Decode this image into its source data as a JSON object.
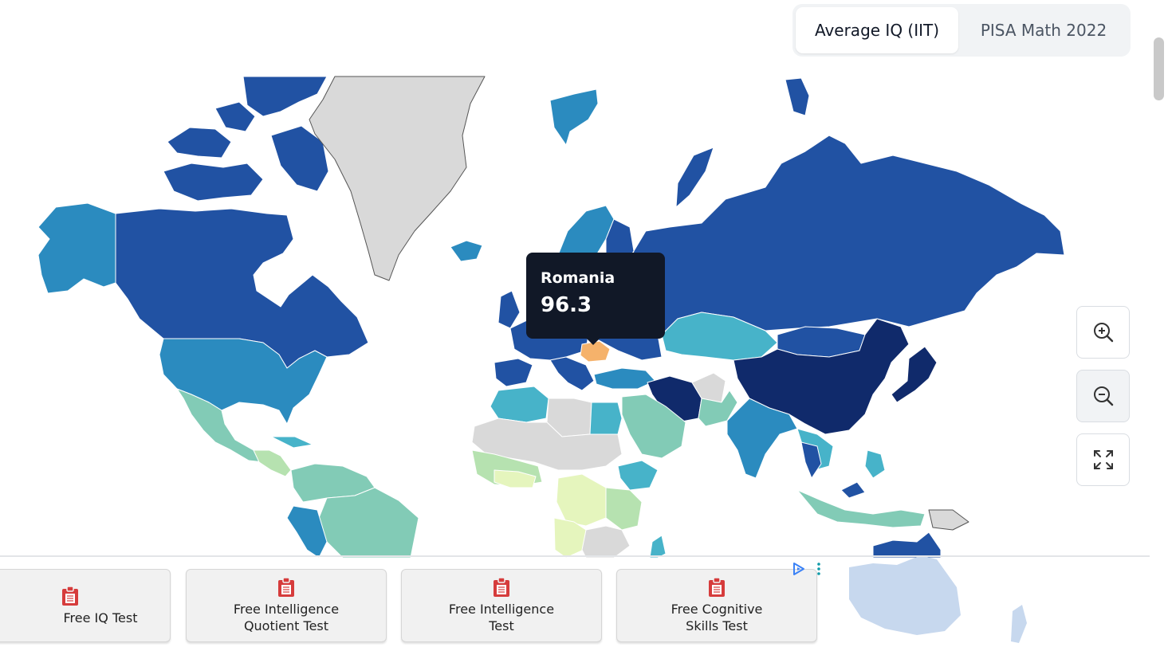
{
  "tabs": [
    {
      "label": "Average IQ (IIT)",
      "active": true
    },
    {
      "label": "PISA Math 2022",
      "active": false
    }
  ],
  "tooltip": {
    "country": "Romania",
    "value": "96.3"
  },
  "map": {
    "highlighted_country": "Romania",
    "colors": {
      "very_high": "#102a6b",
      "high": "#2152a3",
      "upper_mid": "#2b8bbf",
      "mid": "#47b3c9",
      "lower_mid": "#82cbb6",
      "low": "#b6e2b0",
      "very_low": "#e5f5bd",
      "no_data": "#d9d9d9",
      "hover": "#f5b26b",
      "oceania_faded": "#c7d8ee"
    }
  },
  "controls": [
    {
      "name": "zoom-in",
      "icon": "zoom-in-icon"
    },
    {
      "name": "zoom-out",
      "icon": "zoom-out-icon"
    },
    {
      "name": "fullscreen",
      "icon": "expand-icon"
    }
  ],
  "ads": [
    {
      "label": "Free IQ Test",
      "icon": "clipboard-icon"
    },
    {
      "label": "Free Intelligence\nQuotient Test",
      "icon": "clipboard-icon"
    },
    {
      "label": "Free Intelligence\nTest",
      "icon": "clipboard-icon"
    },
    {
      "label": "Free Cognitive\nSkills Test",
      "icon": "clipboard-icon"
    }
  ]
}
